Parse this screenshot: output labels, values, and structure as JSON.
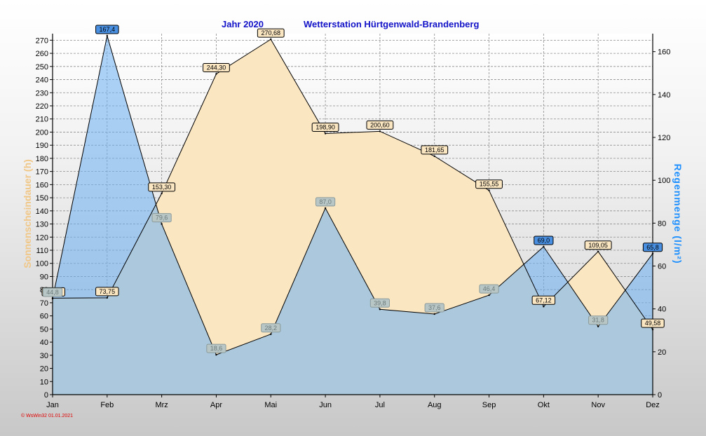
{
  "chart_data": {
    "type": "area",
    "title": "Jahr  2020",
    "subtitle": "Wetterstation Hürtgenwald-Brandenberg",
    "categories": [
      "Jan",
      "Feb",
      "Mrz",
      "Apr",
      "Mai",
      "Jun",
      "Jul",
      "Aug",
      "Sep",
      "Okt",
      "Nov",
      "Dez"
    ],
    "y_left": {
      "label": "Sonnenscheindauer (h)",
      "ylim": [
        0,
        275
      ],
      "ticks": [
        0,
        10,
        20,
        30,
        40,
        50,
        60,
        70,
        80,
        90,
        100,
        110,
        120,
        130,
        140,
        150,
        160,
        170,
        180,
        190,
        200,
        210,
        220,
        230,
        240,
        250,
        260,
        270
      ]
    },
    "y_right": {
      "label": "Regenmenge   (l/m²)",
      "ylim": [
        0,
        168.4
      ],
      "ticks": [
        0,
        20,
        40,
        60,
        80,
        100,
        120,
        140,
        160
      ]
    },
    "series": [
      {
        "axis": "left",
        "color": "#fbe6c2",
        "values": [
          73.5,
          73.75,
          153.3,
          244.3,
          270.68,
          198.9,
          200.6,
          181.65,
          155.55,
          67.12,
          109.05,
          49.58
        ],
        "labels": [
          "73,50",
          "73,75",
          "153,30",
          "244,30",
          "270,68",
          "198,90",
          "200,60",
          "181,65",
          "155,55",
          "67,12",
          "109,05",
          "49,58"
        ]
      },
      {
        "axis": "right",
        "color": "#6aaef4",
        "values": [
          44.8,
          167.4,
          79.6,
          18.6,
          28.2,
          87.0,
          39.8,
          37.6,
          46.4,
          69.0,
          31.8,
          65.8
        ],
        "labels": [
          "44,8",
          "167,4",
          "79,6",
          "18,6",
          "28,2",
          "87,0",
          "39,8",
          "37,6",
          "46,4",
          "69,0",
          "31,8",
          "65,8"
        ]
      }
    ],
    "grid": true
  },
  "footer": "© WsWin32  01.01.2021"
}
